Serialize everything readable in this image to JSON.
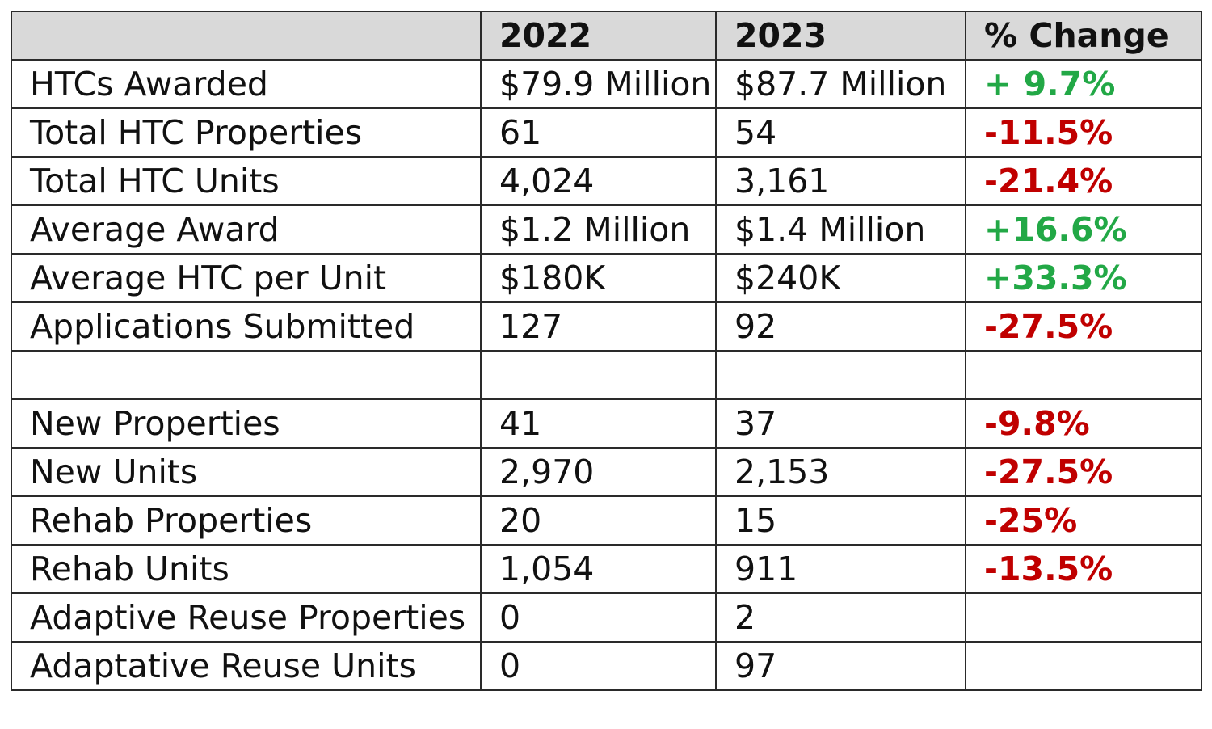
{
  "colors": {
    "header_bg": "#d9d9d9",
    "positive": "#22a846",
    "negative": "#c00000",
    "border": "#2a2a2a"
  },
  "chart_data": {
    "type": "table",
    "columns": [
      "",
      "2022",
      "2023",
      "% Change"
    ],
    "rows": [
      {
        "label": "HTCs Awarded",
        "y2022": "$79.9 Million",
        "y2023": "$87.7 Million",
        "change": "+ 9.7%",
        "direction": "positive"
      },
      {
        "label": "Total HTC Properties",
        "y2022": "61",
        "y2023": "54",
        "change": "-11.5%",
        "direction": "negative"
      },
      {
        "label": "Total HTC Units",
        "y2022": "4,024",
        "y2023": "3,161",
        "change": "-21.4%",
        "direction": "negative"
      },
      {
        "label": "Average Award",
        "y2022": "$1.2 Million",
        "y2023": "$1.4 Million",
        "change": "+16.6%",
        "direction": "positive"
      },
      {
        "label": "Average HTC per Unit",
        "y2022": "$180K",
        "y2023": "$240K",
        "change": "+33.3%",
        "direction": "positive"
      },
      {
        "label": "Applications Submitted",
        "y2022": "127",
        "y2023": "92",
        "change": "-27.5%",
        "direction": "negative"
      },
      {
        "label": "",
        "y2022": "",
        "y2023": "",
        "change": "",
        "direction": ""
      },
      {
        "label": "New Properties",
        "y2022": "41",
        "y2023": "37",
        "change": "-9.8%",
        "direction": "negative"
      },
      {
        "label": "New Units",
        "y2022": "2,970",
        "y2023": "2,153",
        "change": "-27.5%",
        "direction": "negative"
      },
      {
        "label": "Rehab Properties",
        "y2022": "20",
        "y2023": "15",
        "change": "-25%",
        "direction": "negative"
      },
      {
        "label": "Rehab Units",
        "y2022": "1,054",
        "y2023": "911",
        "change": "-13.5%",
        "direction": "negative"
      },
      {
        "label": "Adaptive Reuse Properties",
        "y2022": "0",
        "y2023": "2",
        "change": "",
        "direction": ""
      },
      {
        "label": "Adaptative Reuse Units",
        "y2022": "0",
        "y2023": "97",
        "change": "",
        "direction": ""
      }
    ]
  }
}
